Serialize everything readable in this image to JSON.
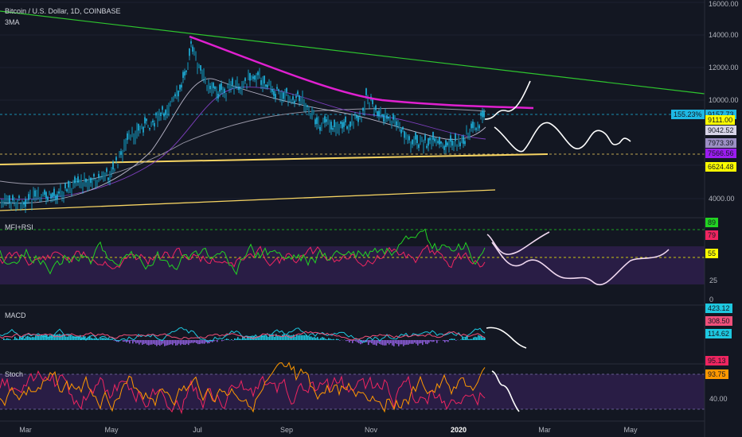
{
  "header": {
    "title": "Bitcoin / U.S. Dollar, 1D, COINBASE",
    "indicator": "3MA"
  },
  "panes": {
    "rsi": {
      "label": "MFI+RSI"
    },
    "macd": {
      "label": "MACD"
    },
    "stoch": {
      "label": "Stoch"
    }
  },
  "price_axis": {
    "ticks": [
      "16000.00",
      "14000.00",
      "12000.00",
      "10000.00",
      "4000.00"
    ],
    "change_badge": "155.23%",
    "tags": [
      {
        "value": "9157.73",
        "color": "#1eb8e4"
      },
      {
        "value": "9111.00",
        "color": "#ffff00"
      },
      {
        "value": "9042.52",
        "color": "#d7d4e8"
      },
      {
        "value": "7973.39",
        "color": "#9c8fc4"
      },
      {
        "value": "7566.56",
        "color": "#9c1cf0"
      },
      {
        "value": "6624.48",
        "color": "#ffff00"
      }
    ]
  },
  "rsi_axis": {
    "ticks": [
      "25",
      "0"
    ],
    "tags": [
      {
        "value": "89",
        "color": "#22d322"
      },
      {
        "value": "79",
        "color": "#ef2560"
      },
      {
        "value": "55",
        "color": "#ffff00"
      }
    ]
  },
  "macd_axis": {
    "tags": [
      {
        "value": "423.12",
        "color": "#1ec8e0"
      },
      {
        "value": "308.50",
        "color": "#f0507a"
      },
      {
        "value": "114.62",
        "color": "#1ec8e0"
      }
    ]
  },
  "stoch_axis": {
    "ticks": [
      "40.00"
    ],
    "tags": [
      {
        "value": "95.13",
        "color": "#ef2560"
      },
      {
        "value": "93.75",
        "color": "#ff9800"
      }
    ]
  },
  "time_axis": [
    {
      "label": "Mar",
      "bold": false
    },
    {
      "label": "May",
      "bold": false
    },
    {
      "label": "Jul",
      "bold": false
    },
    {
      "label": "Sep",
      "bold": false
    },
    {
      "label": "Nov",
      "bold": false
    },
    {
      "label": "2020",
      "bold": true
    },
    {
      "label": "Mar",
      "bold": false
    },
    {
      "label": "May",
      "bold": false
    }
  ],
  "colors": {
    "background": "#131722",
    "candle": "#1eb8e4",
    "resistance_line": "#e020d0",
    "long_trend_line": "#2ec52e",
    "support_line": "#f6d463",
    "projection": "#ffffff",
    "rsi_line": "#ef2560",
    "mfi_line": "#22d322",
    "stoch_k": "#ef2560",
    "stoch_d": "#ff9800",
    "band_fill": "#2a1e48"
  }
}
